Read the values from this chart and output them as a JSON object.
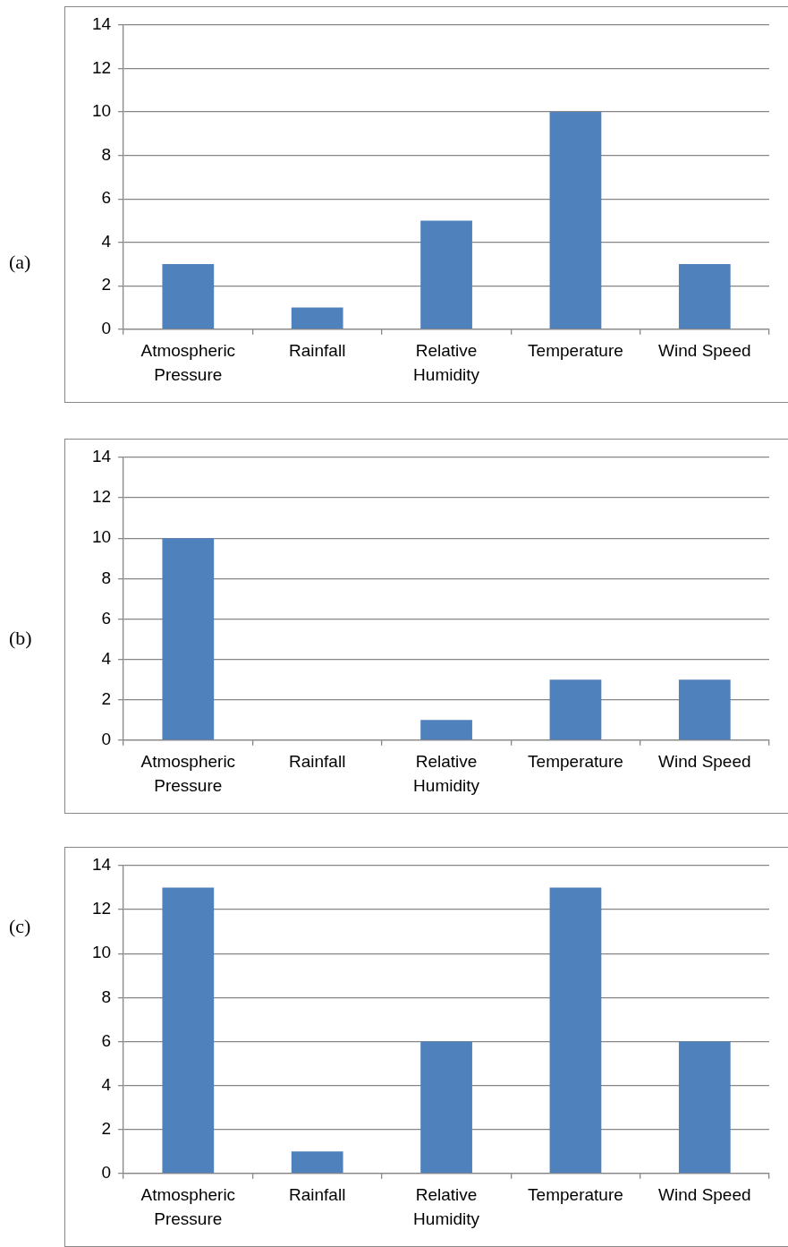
{
  "chart_data": [
    {
      "type": "bar",
      "title": "(a)",
      "categories": [
        "Atmospheric Pressure",
        "Rainfall",
        "Relative Humidity",
        "Temperature",
        "Wind Speed"
      ],
      "values": [
        3,
        1,
        5,
        10,
        3
      ],
      "color": "#4f81bd",
      "ylim": [
        0,
        14
      ],
      "yticks": [
        0,
        2,
        4,
        6,
        8,
        10,
        12,
        14
      ],
      "grid": "y",
      "legend": false
    },
    {
      "type": "bar",
      "title": "(b)",
      "categories": [
        "Atmospheric Pressure",
        "Rainfall",
        "Relative Humidity",
        "Temperature",
        "Wind Speed"
      ],
      "values": [
        10,
        0,
        1,
        3,
        3
      ],
      "color": "#4f81bd",
      "ylim": [
        0,
        14
      ],
      "yticks": [
        0,
        2,
        4,
        6,
        8,
        10,
        12,
        14
      ],
      "grid": "y",
      "legend": false
    },
    {
      "type": "bar",
      "title": "(c)",
      "categories": [
        "Atmospheric Pressure",
        "Rainfall",
        "Relative Humidity",
        "Temperature",
        "Wind Speed"
      ],
      "values": [
        13,
        1,
        6,
        13,
        6
      ],
      "color": "#4f81bd",
      "ylim": [
        0,
        14
      ],
      "yticks": [
        0,
        2,
        4,
        6,
        8,
        10,
        12,
        14
      ],
      "grid": "y",
      "legend": false
    }
  ]
}
